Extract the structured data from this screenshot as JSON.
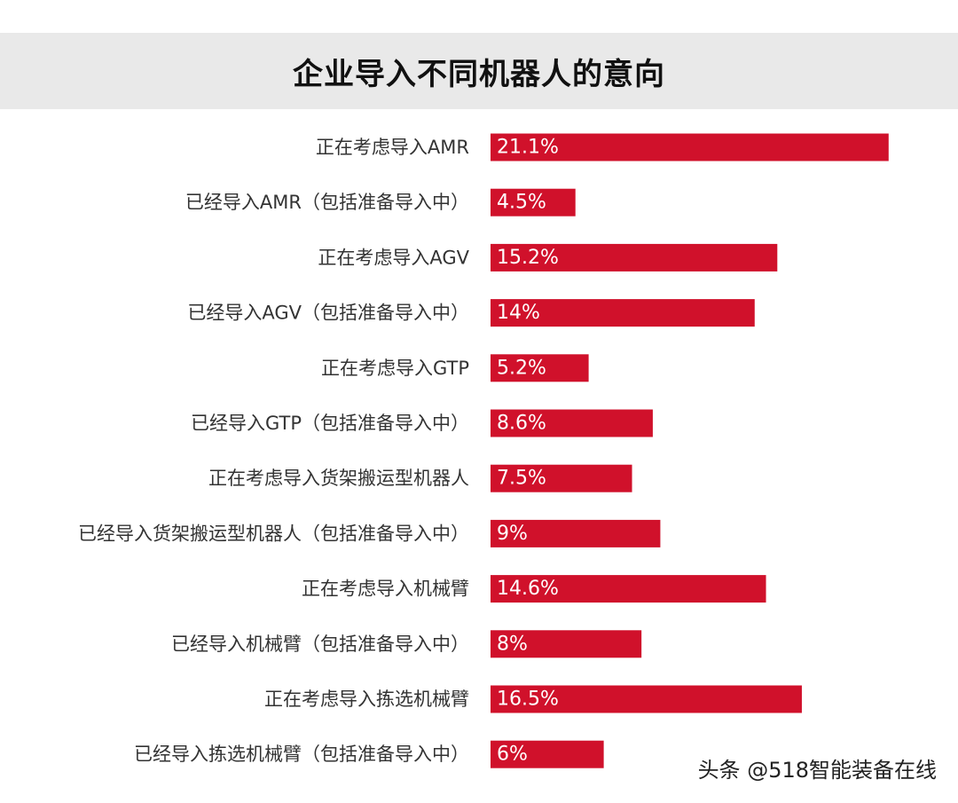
{
  "chart_data": {
    "type": "bar",
    "orientation": "horizontal",
    "title": "企业导入不同机器人的意向",
    "categories": [
      "正在考虑导入AMR",
      "已经导入AMR（包括准备导入中）",
      "正在考虑导入AGV",
      "已经导入AGV（包括准备导入中）",
      "正在考虑导入GTP",
      "已经导入GTP（包括准备导入中）",
      "正在考虑导入货架搬运型机器人",
      "已经导入货架搬运型机器人（包括准备导入中）",
      "正在考虑导入机械臂",
      "已经导入机械臂（包括准备导入中）",
      "正在考虑导入拣选机械臂",
      "已经导入拣选机械臂（包括准备导入中）"
    ],
    "values": [
      21.1,
      4.5,
      15.2,
      14,
      5.2,
      8.6,
      7.5,
      9,
      14.6,
      8,
      16.5,
      6
    ],
    "value_labels": [
      "21.1%",
      "4.5%",
      "15.2%",
      "14%",
      "5.2%",
      "8.6%",
      "7.5%",
      "9%",
      "14.6%",
      "8%",
      "16.5%",
      "6%"
    ],
    "unit": "%",
    "bar_color": "#d0112b",
    "label_color": "#ffffff",
    "grid": false,
    "legend": "none"
  },
  "watermark": "头条 @518智能装备在线"
}
